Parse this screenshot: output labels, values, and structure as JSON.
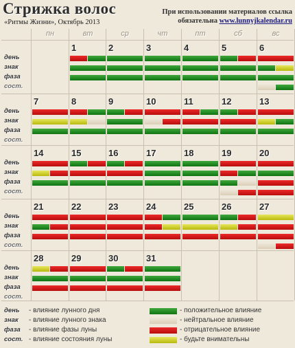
{
  "header": {
    "title": "Стрижка волос",
    "subtitle": "«Ритмы Жизни», Октябрь 2013",
    "notice_line1": "При использовании материалов ссылка",
    "notice_line2_prefix": "обязательна ",
    "notice_url": "www.lunnyjkalendar.ru"
  },
  "weekdays": [
    "пн",
    "вт",
    "ср",
    "чт",
    "пт",
    "сб",
    "вс"
  ],
  "row_labels": [
    "день",
    "знак",
    "фаза",
    "сост."
  ],
  "weeks": [
    {
      "days": [
        null,
        {
          "day": "1",
          "rows": [
            [
              "r",
              "g"
            ],
            [
              "g"
            ],
            [
              "g"
            ],
            []
          ]
        },
        {
          "day": "2",
          "rows": [
            [
              "g"
            ],
            [
              "g"
            ],
            [
              "g"
            ],
            []
          ]
        },
        {
          "day": "3",
          "rows": [
            [
              "g"
            ],
            [
              "g"
            ],
            [
              "g"
            ],
            []
          ]
        },
        {
          "day": "4",
          "rows": [
            [
              "g"
            ],
            [
              "g"
            ],
            [
              "g"
            ],
            []
          ]
        },
        {
          "day": "5",
          "rows": [
            [
              "g",
              "r"
            ],
            [
              "g"
            ],
            [
              "g"
            ],
            []
          ]
        },
        {
          "day": "6",
          "rows": [
            [
              "r"
            ],
            [
              "g",
              "y"
            ],
            [
              "g"
            ],
            [
              "n",
              "g"
            ]
          ]
        }
      ]
    },
    {
      "days": [
        {
          "day": "7",
          "rows": [
            [
              "r"
            ],
            [
              "y"
            ],
            [
              "g"
            ],
            []
          ]
        },
        {
          "day": "8",
          "rows": [
            [
              "r",
              "g"
            ],
            [
              "y",
              "n"
            ],
            [
              "g"
            ],
            []
          ]
        },
        {
          "day": "9",
          "rows": [
            [
              "g",
              "r"
            ],
            [
              "g"
            ],
            [
              "g"
            ],
            []
          ]
        },
        {
          "day": "10",
          "rows": [
            [
              "r"
            ],
            [
              "n",
              "r"
            ],
            [
              "g"
            ],
            []
          ]
        },
        {
          "day": "11",
          "rows": [
            [
              "r",
              "g"
            ],
            [
              "r"
            ],
            [
              "g"
            ],
            []
          ]
        },
        {
          "day": "12",
          "rows": [
            [
              "g",
              "r"
            ],
            [
              "r"
            ],
            [
              "g"
            ],
            []
          ]
        },
        {
          "day": "13",
          "rows": [
            [
              "r"
            ],
            [
              "y",
              "g"
            ],
            [
              "g"
            ],
            []
          ]
        }
      ]
    },
    {
      "days": [
        {
          "day": "14",
          "rows": [
            [
              "r"
            ],
            [
              "y",
              "r"
            ],
            [
              "g"
            ],
            []
          ]
        },
        {
          "day": "15",
          "rows": [
            [
              "g",
              "r"
            ],
            [
              "r"
            ],
            [
              "g"
            ],
            []
          ]
        },
        {
          "day": "16",
          "rows": [
            [
              "g",
              "r"
            ],
            [
              "r"
            ],
            [
              "g"
            ],
            []
          ]
        },
        {
          "day": "17",
          "rows": [
            [
              "g"
            ],
            [
              "g"
            ],
            [
              "g"
            ],
            []
          ]
        },
        {
          "day": "18",
          "rows": [
            [
              "g"
            ],
            [
              "g"
            ],
            [
              "g"
            ],
            []
          ]
        },
        {
          "day": "19",
          "rows": [
            [
              "r"
            ],
            [
              "r",
              "g"
            ],
            [
              "g",
              "n"
            ],
            [
              "n",
              "r"
            ]
          ]
        },
        {
          "day": "20",
          "rows": [
            [
              "r"
            ],
            [
              "g"
            ],
            [
              "r"
            ],
            [
              "r"
            ]
          ]
        }
      ]
    },
    {
      "days": [
        {
          "day": "21",
          "rows": [
            [
              "r"
            ],
            [
              "g",
              "r"
            ],
            [
              "r"
            ],
            []
          ]
        },
        {
          "day": "22",
          "rows": [
            [
              "r"
            ],
            [
              "r"
            ],
            [
              "r"
            ],
            []
          ]
        },
        {
          "day": "23",
          "rows": [
            [
              "r"
            ],
            [
              "r"
            ],
            [
              "r"
            ],
            []
          ]
        },
        {
          "day": "24",
          "rows": [
            [
              "r",
              "g"
            ],
            [
              "r",
              "y"
            ],
            [
              "r"
            ],
            []
          ]
        },
        {
          "day": "25",
          "rows": [
            [
              "g"
            ],
            [
              "y"
            ],
            [
              "r"
            ],
            []
          ]
        },
        {
          "day": "26",
          "rows": [
            [
              "g",
              "r"
            ],
            [
              "y",
              "r"
            ],
            [
              "r"
            ],
            []
          ]
        },
        {
          "day": "27",
          "rows": [
            [
              "y"
            ],
            [
              "r"
            ],
            [
              "r"
            ],
            [
              "n",
              "r"
            ]
          ]
        }
      ]
    },
    {
      "days": [
        {
          "day": "28",
          "rows": [
            [
              "y",
              "r"
            ],
            [
              "g"
            ],
            [
              "r"
            ],
            []
          ]
        },
        {
          "day": "29",
          "rows": [
            [
              "r"
            ],
            [
              "g"
            ],
            [
              "r"
            ],
            []
          ]
        },
        {
          "day": "30",
          "rows": [
            [
              "g",
              "r"
            ],
            [
              "g"
            ],
            [
              "r"
            ],
            []
          ]
        },
        {
          "day": "31",
          "rows": [
            [
              "g"
            ],
            [
              "g"
            ],
            [
              "r"
            ],
            []
          ]
        },
        null,
        null,
        null
      ]
    }
  ],
  "legend": {
    "labels": [
      {
        "tag": "день",
        "text": "- влияние лунного дня"
      },
      {
        "tag": "знак",
        "text": "- влияние лунного знака"
      },
      {
        "tag": "фаза",
        "text": "- влияние фазы луны"
      },
      {
        "tag": "сост.",
        "text": "- влияние состояния луны"
      }
    ],
    "keys": [
      {
        "color": "g",
        "text": "- положительное влияние"
      },
      {
        "color": "n",
        "text": "- нейтральное влияние"
      },
      {
        "color": "r",
        "text": "- отрицательное влияние"
      },
      {
        "color": "y",
        "text": "- будьте внимательны"
      }
    ]
  },
  "colors": {
    "positive": "#1a8c1c",
    "neutral": "#e4dccb",
    "negative": "#d41616",
    "attention": "#d4d43a",
    "background": "#efe9dc"
  }
}
